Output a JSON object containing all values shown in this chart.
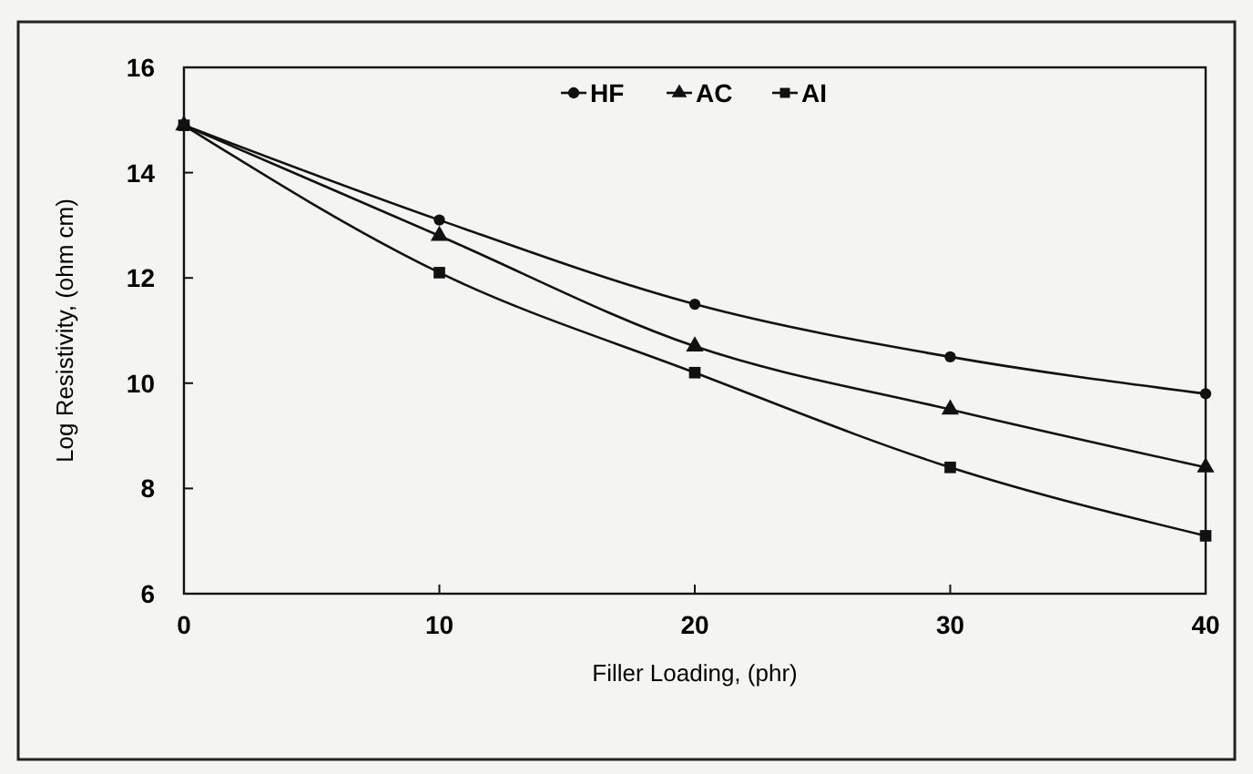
{
  "chart_data": {
    "type": "line",
    "xlabel": "Filler Loading, (phr)",
    "ylabel": "Log Resistivity, (ohm cm)",
    "x": [
      0,
      10,
      20,
      30,
      40
    ],
    "series": [
      {
        "name": "HF",
        "color": "#111111",
        "marker": "circle",
        "values": [
          14.9,
          13.1,
          11.5,
          10.5,
          9.8
        ]
      },
      {
        "name": "AC",
        "color": "#111111",
        "marker": "triangle",
        "values": [
          14.9,
          12.8,
          10.7,
          9.5,
          8.4
        ]
      },
      {
        "name": "AI",
        "color": "#111111",
        "marker": "square",
        "values": [
          14.9,
          12.1,
          10.2,
          8.4,
          7.1
        ]
      }
    ],
    "xlim": [
      0,
      40
    ],
    "xticks": [
      0,
      10,
      20,
      30,
      40
    ],
    "ylim": [
      6,
      16
    ],
    "yticks": [
      6,
      8,
      10,
      12,
      14,
      16
    ],
    "grid": false,
    "legend": "top",
    "line_style": "solid"
  }
}
